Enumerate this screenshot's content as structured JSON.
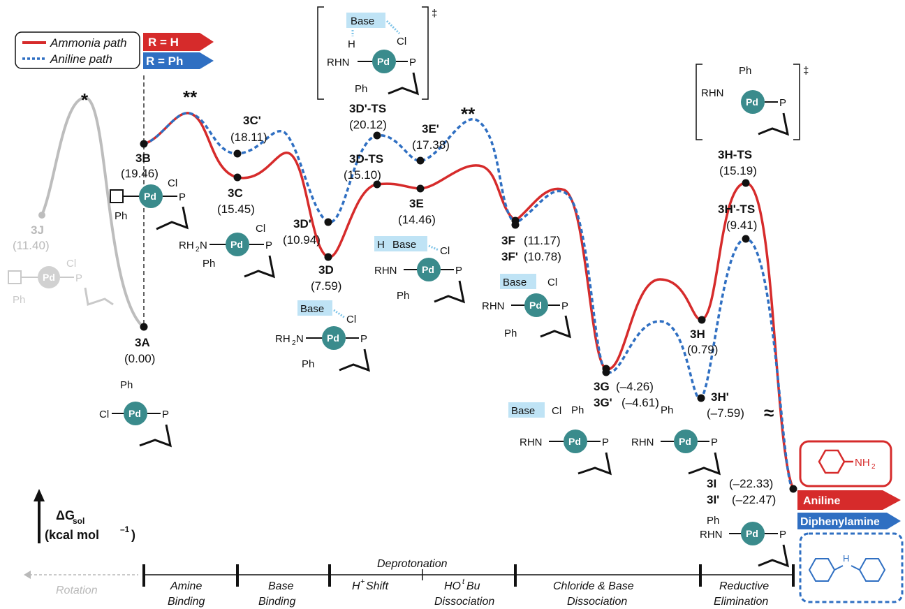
{
  "legend": {
    "ammonia_path": "Ammonia path",
    "aniline_path": "Aniline path",
    "colors": {
      "ammonia": "#d62b2b",
      "aniline": "#2f6fc2",
      "rotation": "#b9b9b9"
    }
  },
  "arrows": {
    "r_h": "R = H",
    "r_ph": "R = Ph",
    "aniline": "Aniline",
    "diphenylamine": "Diphenylamine"
  },
  "product_labels": {
    "nh2": "NH",
    "nh2_sub": "2",
    "nh": "H"
  },
  "axis": {
    "label_main": "ΔG",
    "label_sub": "sol",
    "units_prefix": "(kcal mol",
    "units_exp": "–1",
    "units_suffix": " )"
  },
  "markers": {
    "single": "*",
    "double": "**",
    "break": "≈",
    "dagger": "‡"
  },
  "states": {
    "J": {
      "name": "3J",
      "energy": "(11.40)"
    },
    "A": {
      "name": "3A",
      "energy": "(0.00)"
    },
    "B": {
      "name": "3B",
      "energy": "(19.46)"
    },
    "C": {
      "name": "3C",
      "energy": "(15.45)"
    },
    "Cp": {
      "name": "3C'",
      "energy": "(18.11)"
    },
    "D": {
      "name": "3D",
      "energy": "(7.59)"
    },
    "Dp": {
      "name": "3D'",
      "energy": "(10.94)"
    },
    "DTS": {
      "name": "3D-TS",
      "energy": "(15.10)"
    },
    "DpTS": {
      "name": "3D'-TS",
      "energy": "(20.12)"
    },
    "E": {
      "name": "3E",
      "energy": "(14.46)"
    },
    "Ep": {
      "name": "3E'",
      "energy": "(17.38)"
    },
    "F": {
      "name": "3F",
      "energy": "(11.17)"
    },
    "Fp": {
      "name": "3F'",
      "energy": "(10.78)"
    },
    "G": {
      "name": "3G",
      "energy": "(–4.26)"
    },
    "Gp": {
      "name": "3G'",
      "energy": "(–4.61)"
    },
    "H": {
      "name": "3H",
      "energy": "(0.79)"
    },
    "Hp": {
      "name": "3H'",
      "energy": "(–7.59)"
    },
    "HTS": {
      "name": "3H-TS",
      "energy": "(15.19)"
    },
    "HpTS": {
      "name": "3H'-TS",
      "energy": "(9.41)"
    },
    "I": {
      "name": "3I",
      "energy": "(–22.33)"
    },
    "Ip": {
      "name": "3I'",
      "energy": "(–22.47)"
    }
  },
  "structure_labels": {
    "pd": "Pd",
    "p": "P",
    "cl": "Cl",
    "ph": "Ph",
    "rhn": "RHN",
    "rh2n": "RH",
    "rh2n_sub": "2",
    "rh2n_tail": "N",
    "base": "Base",
    "hbase": "H",
    "h": "H"
  },
  "stages": {
    "rotation": "Rotation",
    "amine_binding": [
      "Amine",
      "Binding"
    ],
    "base_binding": [
      "Base",
      "Binding"
    ],
    "deprotonation": "Deprotonation",
    "h_shift_main": "H",
    "h_shift_sup": "+",
    "h_shift_tail": " Shift",
    "hotbu_pre": "HO",
    "hotbu_sup": "t",
    "hotbu_post": "Bu",
    "hotbu_line2": "Dissociation",
    "chloride_base": [
      "Chloride & Base",
      "Dissociation"
    ],
    "reductive_elim": [
      "Reductive",
      "Elimination"
    ]
  }
}
